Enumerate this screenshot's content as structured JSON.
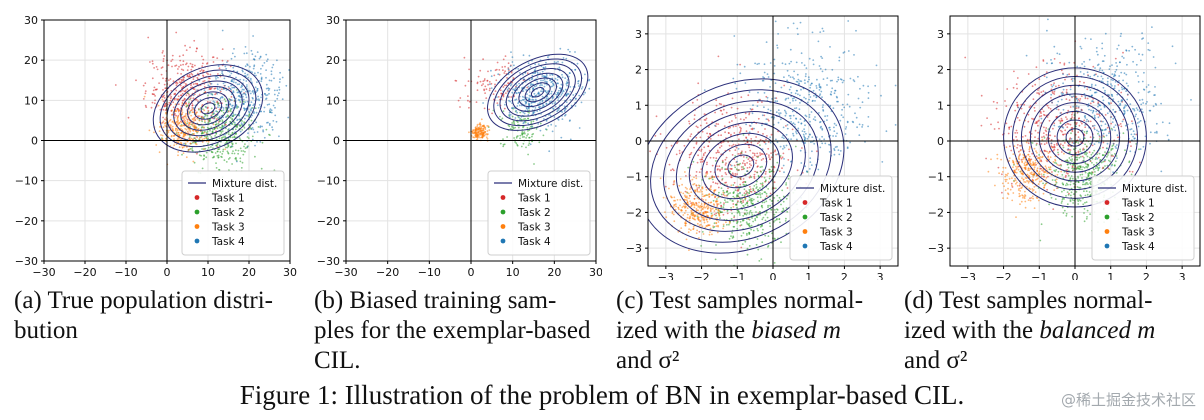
{
  "colors": {
    "task1": "#d62728",
    "task2": "#2ca02c",
    "task3": "#ff7f0e",
    "task4": "#1f77b4",
    "mixture": "#2b2f7a"
  },
  "chart_data": [
    {
      "type": "scatter",
      "panel": "a",
      "xlim": [
        -30,
        30
      ],
      "ylim": [
        -30,
        30
      ],
      "xticks": [
        "−30",
        "−20",
        "−10",
        "0",
        "10",
        "20",
        "30"
      ],
      "yticks": [
        "30",
        "20",
        "10",
        "0",
        "−10",
        "−20",
        "−30"
      ],
      "legend": [
        "Mixture dist.",
        "Task 1",
        "Task 2",
        "Task 3",
        "Task 4"
      ],
      "legend_position": "lower-right",
      "series": [
        {
          "name": "Task 1",
          "center": [
            5,
            12
          ],
          "spread": [
            5,
            5
          ],
          "count": 420
        },
        {
          "name": "Task 2",
          "center": [
            13,
            2
          ],
          "spread": [
            4.5,
            4.5
          ],
          "count": 420
        },
        {
          "name": "Task 3",
          "center": [
            4,
            3
          ],
          "spread": [
            3,
            3
          ],
          "count": 300
        },
        {
          "name": "Task 4",
          "center": [
            19,
            11
          ],
          "spread": [
            5,
            5
          ],
          "count": 420
        }
      ],
      "mixture": {
        "center": [
          10,
          8
        ],
        "radius": [
          14,
          10
        ],
        "angle": 25,
        "levels": 8
      },
      "caption": [
        "(a) True population distri-",
        "bution"
      ]
    },
    {
      "type": "scatter",
      "panel": "b",
      "xlim": [
        -30,
        30
      ],
      "ylim": [
        -30,
        30
      ],
      "xticks": [
        "−30",
        "−20",
        "−10",
        "0",
        "10",
        "20",
        "30"
      ],
      "yticks": [
        "30",
        "20",
        "10",
        "0",
        "−10",
        "−20",
        "−30"
      ],
      "legend": [
        "Mixture dist.",
        "Task 1",
        "Task 2",
        "Task 3",
        "Task 4"
      ],
      "legend_position": "lower-right",
      "series": [
        {
          "name": "Task 1",
          "center": [
            6,
            14
          ],
          "spread": [
            4,
            3
          ],
          "count": 110
        },
        {
          "name": "Task 2",
          "center": [
            12,
            3
          ],
          "spread": [
            2.5,
            2.5
          ],
          "count": 120
        },
        {
          "name": "Task 3",
          "center": [
            2,
            2
          ],
          "spread": [
            1,
            1
          ],
          "count": 160
        },
        {
          "name": "Task 4",
          "center": [
            17,
            12
          ],
          "spread": [
            5,
            4
          ],
          "count": 520
        }
      ],
      "mixture": {
        "center": [
          16,
          12
        ],
        "radius": [
          13,
          8
        ],
        "angle": 28,
        "levels": 8
      },
      "caption": [
        "(b) Biased training sam-",
        "ples for the exemplar-based",
        "CIL."
      ]
    },
    {
      "type": "scatter",
      "panel": "c",
      "xlim": [
        -3.5,
        3.5
      ],
      "ylim": [
        -3.5,
        3.5
      ],
      "xticks": [
        "−3",
        "−2",
        "−1",
        "0",
        "1",
        "2",
        "3"
      ],
      "yticks": [
        "3",
        "2",
        "1",
        "0",
        "−1",
        "−2",
        "−3"
      ],
      "legend": [
        "Mixture dist.",
        "Task 1",
        "Task 2",
        "Task 3",
        "Task 4"
      ],
      "legend_position": "lower-right",
      "series": [
        {
          "name": "Task 1",
          "center": [
            -1.1,
            -0.4
          ],
          "spread": [
            0.8,
            0.8
          ],
          "count": 480
        },
        {
          "name": "Task 2",
          "center": [
            -0.7,
            -1.8
          ],
          "spread": [
            0.6,
            0.6
          ],
          "count": 420
        },
        {
          "name": "Task 3",
          "center": [
            -2.1,
            -1.9
          ],
          "spread": [
            0.4,
            0.4
          ],
          "count": 360
        },
        {
          "name": "Task 4",
          "center": [
            0.9,
            0.9
          ],
          "spread": [
            0.9,
            1.0
          ],
          "count": 460
        }
      ],
      "mixture": {
        "center": [
          -0.9,
          -0.7
        ],
        "radius": [
          3.0,
          2.3
        ],
        "angle": 25,
        "levels": 8
      },
      "caption": [
        "(c) Test samples normal-",
        "ized with the ",
        "biased",
        " m",
        "and σ²"
      ]
    },
    {
      "type": "scatter",
      "panel": "d",
      "xlim": [
        -3.5,
        3.5
      ],
      "ylim": [
        -3.5,
        3.5
      ],
      "xticks": [
        "−3",
        "−2",
        "−1",
        "0",
        "1",
        "2",
        "3"
      ],
      "yticks": [
        "3",
        "2",
        "1",
        "0",
        "−1",
        "−2",
        "−3"
      ],
      "legend": [
        "Mixture dist.",
        "Task 1",
        "Task 2",
        "Task 3",
        "Task 4"
      ],
      "legend_position": "lower-right",
      "series": [
        {
          "name": "Task 1",
          "center": [
            -0.5,
            0.4
          ],
          "spread": [
            0.9,
            0.9
          ],
          "count": 460
        },
        {
          "name": "Task 2",
          "center": [
            0.2,
            -0.9
          ],
          "spread": [
            0.6,
            0.6
          ],
          "count": 420
        },
        {
          "name": "Task 3",
          "center": [
            -1.3,
            -0.9
          ],
          "spread": [
            0.4,
            0.4
          ],
          "count": 320
        },
        {
          "name": "Task 4",
          "center": [
            0.9,
            1.1
          ],
          "spread": [
            0.8,
            0.9
          ],
          "count": 420
        }
      ],
      "mixture": {
        "center": [
          0,
          0.1
        ],
        "radius": [
          2.0,
          1.95
        ],
        "angle": 0,
        "levels": 8
      },
      "caption": [
        "(d) Test samples normal-",
        "ized with the ",
        "balanced",
        " m",
        "and σ²"
      ]
    }
  ],
  "figure_caption": "Figure 1: Illustration of the problem of BN in exemplar-based CIL.",
  "watermark": "@稀土掘金技术社区"
}
